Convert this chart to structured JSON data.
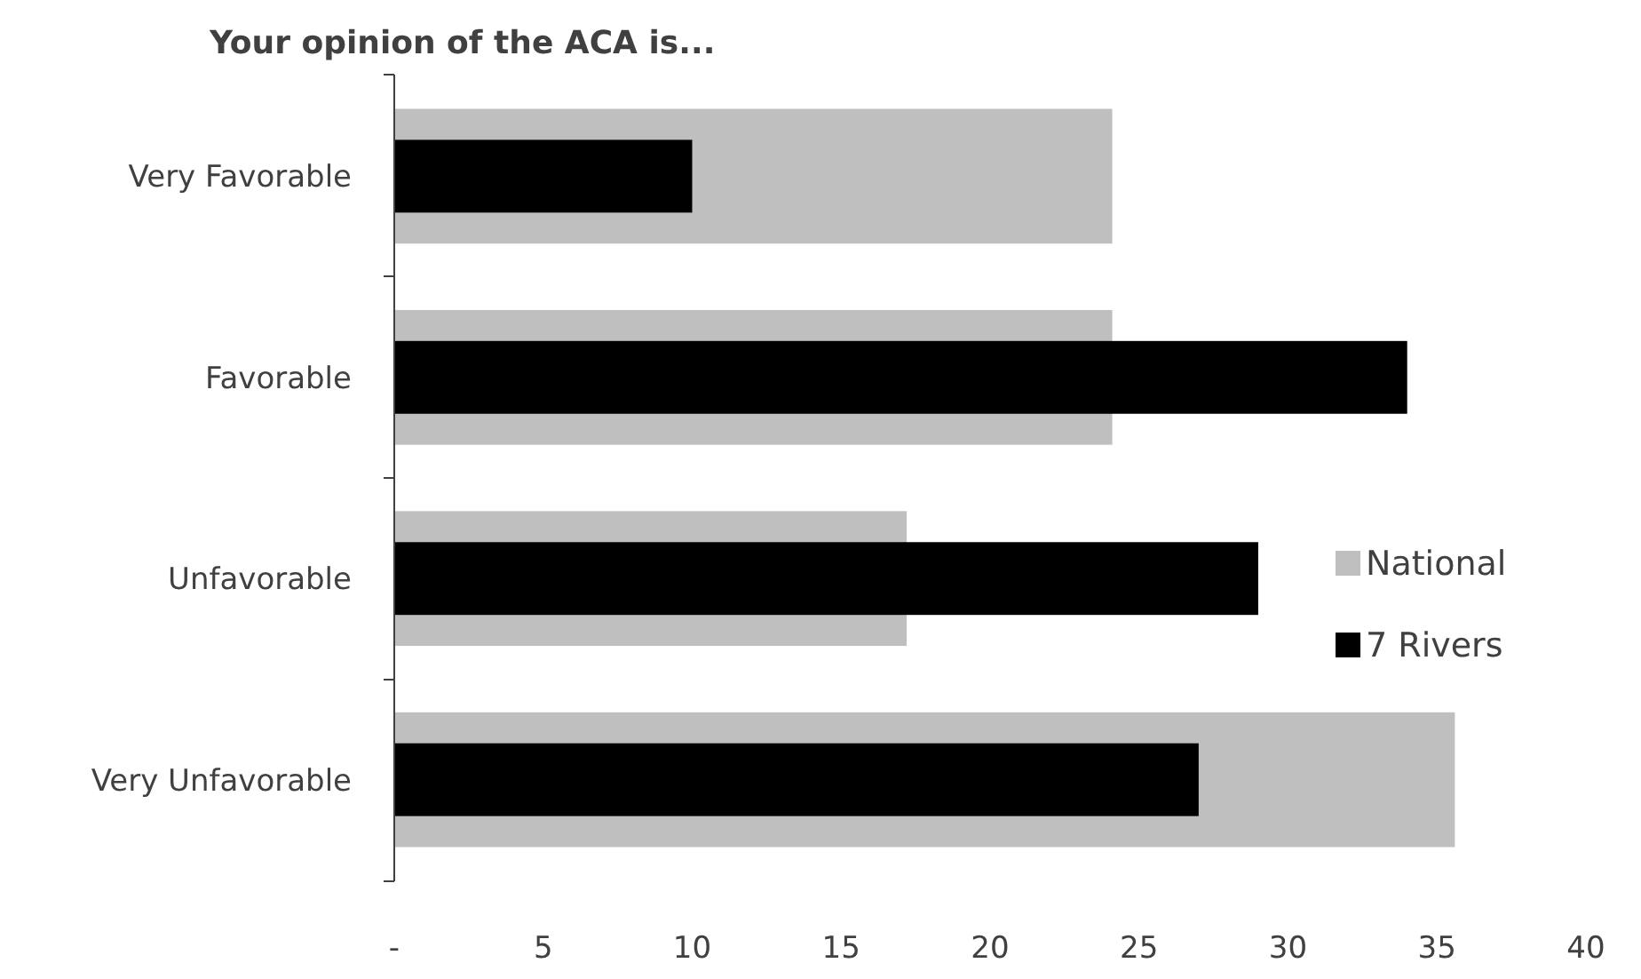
{
  "chart_data": {
    "type": "bar",
    "orientation": "horizontal",
    "title": "Your opinion of the ACA is...",
    "categories": [
      "Very Favorable",
      "Favorable",
      "Unfavorable",
      "Very Unfavorable"
    ],
    "series": [
      {
        "name": "National",
        "color": "#bfbfbf",
        "values": [
          24.1,
          24.1,
          17.2,
          35.6
        ]
      },
      {
        "name": "7 Rivers",
        "color": "#000000",
        "values": [
          10.0,
          34.0,
          29.0,
          27.0
        ]
      }
    ],
    "xlim": [
      0,
      40
    ],
    "xticks": [
      {
        "value": 0,
        "label": "-"
      },
      5,
      10,
      15,
      20,
      25,
      30,
      35,
      40
    ],
    "grid": false,
    "legend": "right"
  }
}
